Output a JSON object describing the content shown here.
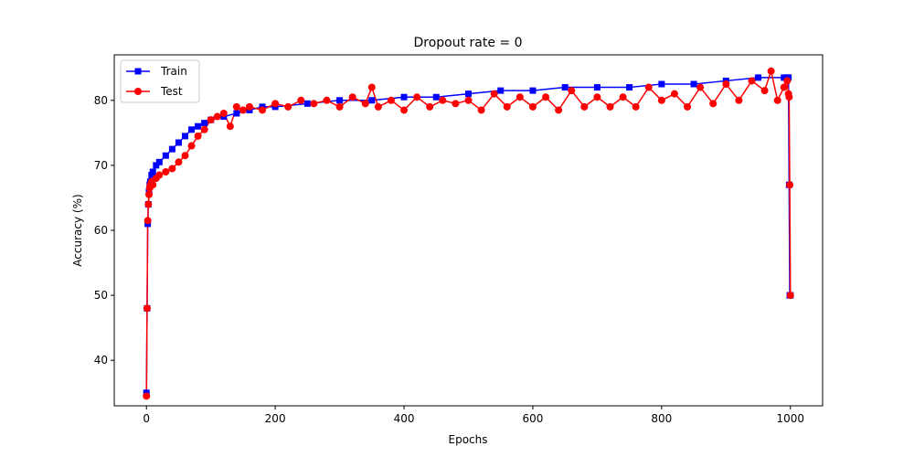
{
  "chart_data": {
    "type": "line",
    "title": "Dropout rate = 0",
    "xlabel": "Epochs",
    "ylabel": "Accuracy (%)",
    "xlim": [
      -50,
      1050
    ],
    "ylim": [
      33,
      87
    ],
    "xticks": [
      0,
      200,
      400,
      600,
      800,
      1000
    ],
    "yticks": [
      40,
      50,
      60,
      70,
      80
    ],
    "grid": false,
    "legend_position": "top-left",
    "series": [
      {
        "name": "Train",
        "color": "#0000ff",
        "marker": "square",
        "x": [
          0,
          1,
          2,
          3,
          4,
          5,
          6,
          8,
          10,
          15,
          20,
          30,
          40,
          50,
          60,
          70,
          80,
          90,
          100,
          120,
          140,
          160,
          180,
          200,
          250,
          300,
          350,
          400,
          450,
          500,
          550,
          600,
          650,
          700,
          750,
          800,
          850,
          900,
          950,
          990,
          995,
          997,
          998,
          999,
          1000
        ],
        "y": [
          35,
          48,
          61,
          64,
          66,
          67,
          67.5,
          68.5,
          69,
          70,
          70.5,
          71.5,
          72.5,
          73.5,
          74.5,
          75.5,
          76,
          76.5,
          77,
          77.5,
          78,
          78.5,
          79,
          79,
          79.5,
          80,
          80,
          80.5,
          80.5,
          81,
          81.5,
          81.5,
          82,
          82,
          82,
          82.5,
          82.5,
          83,
          83.5,
          83.5,
          83.5,
          83.5,
          67,
          50,
          50
        ]
      },
      {
        "name": "Test",
        "color": "#ff0000",
        "marker": "circle",
        "x": [
          0,
          1,
          2,
          3,
          4,
          5,
          6,
          8,
          10,
          15,
          20,
          30,
          40,
          50,
          60,
          70,
          80,
          90,
          100,
          110,
          120,
          130,
          140,
          150,
          160,
          180,
          200,
          220,
          240,
          260,
          280,
          300,
          320,
          340,
          350,
          360,
          380,
          400,
          420,
          440,
          460,
          480,
          500,
          520,
          540,
          560,
          580,
          600,
          620,
          640,
          660,
          680,
          700,
          720,
          740,
          760,
          780,
          800,
          820,
          840,
          860,
          880,
          900,
          920,
          940,
          960,
          970,
          980,
          990,
          995,
          997,
          998,
          999,
          1000
        ],
        "y": [
          34.5,
          48,
          61.5,
          64,
          65.5,
          66.5,
          67,
          67.5,
          67,
          68,
          68.5,
          69,
          69.5,
          70.5,
          71.5,
          73,
          74.5,
          75.5,
          77,
          77.5,
          78,
          76,
          79,
          78.5,
          79,
          78.5,
          79.5,
          79,
          80,
          79.5,
          80,
          79,
          80.5,
          79.5,
          82,
          79,
          80,
          78.5,
          80.5,
          79,
          80,
          79.5,
          80,
          78.5,
          81,
          79,
          80.5,
          79,
          80.5,
          78.5,
          81.5,
          79,
          80.5,
          79,
          80.5,
          79,
          82,
          80,
          81,
          79,
          82,
          79.5,
          82.5,
          80,
          83,
          81.5,
          84.5,
          80,
          82,
          83,
          81,
          80.5,
          67,
          50
        ]
      }
    ]
  }
}
